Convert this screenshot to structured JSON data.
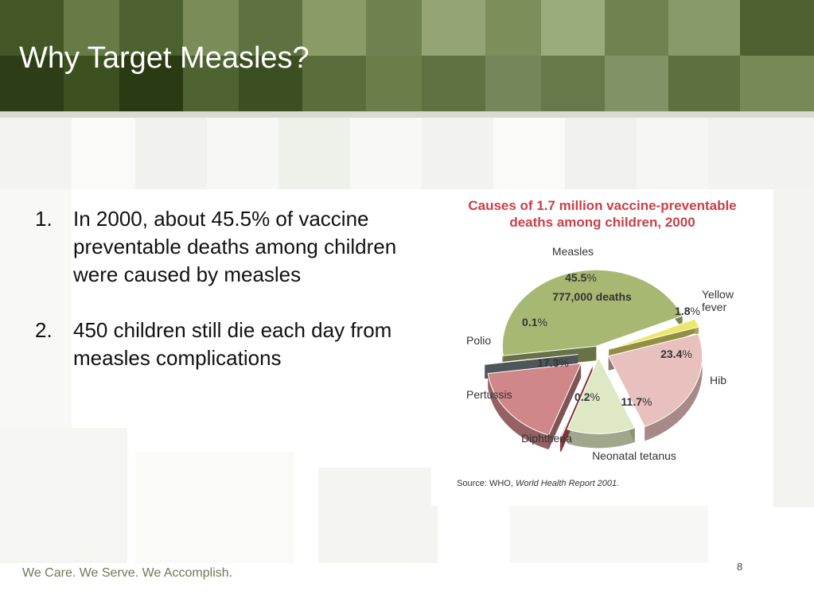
{
  "slide": {
    "title": "Why Target Measles?",
    "footer": "We Care. We Serve. We Accomplish.",
    "page_number": "8"
  },
  "bullets": [
    {
      "number": "1.",
      "text": "In 2000, about 45.5% of vaccine preventable deaths among children were caused by measles"
    },
    {
      "number": "2.",
      "text": "450 children still die each day from measles complications"
    }
  ],
  "chart_data": {
    "type": "pie",
    "title": "Causes of 1.7 million vaccine-preventable deaths among children, 2000",
    "source_prefix": "Source: WHO, ",
    "source_italic": "World Health Report 2001.",
    "measles_deaths": "777,000 deaths",
    "slices": [
      {
        "name": "Measles",
        "value": 45.5,
        "label": "45.5",
        "color": "#a7b872"
      },
      {
        "name": "Yellow fever",
        "value": 1.8,
        "label": "1.8",
        "color": "#ece76a"
      },
      {
        "name": "Hib",
        "value": 23.4,
        "label": "23.4",
        "color": "#e8c0bd"
      },
      {
        "name": "Neonatal tetanus",
        "value": 11.7,
        "label": "11.7",
        "color": "#dfe8c4"
      },
      {
        "name": "Diphtheria",
        "value": 0.2,
        "label": "0.2",
        "color": "#c9585e"
      },
      {
        "name": "Pertussis",
        "value": 17.3,
        "label": "17.3",
        "color": "#cf8789"
      },
      {
        "name": "Polio",
        "value": 0.1,
        "label": "0.1",
        "color": "#808a8f"
      }
    ],
    "percent_sign": "%",
    "colors": {
      "title": "#c94048",
      "label": "#333333"
    }
  }
}
